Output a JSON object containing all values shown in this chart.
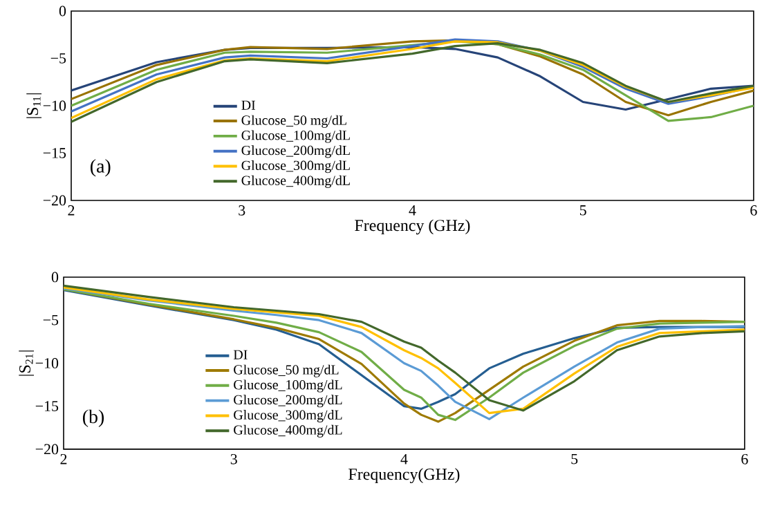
{
  "chart_data": [
    {
      "type": "line",
      "xlabel": "Frequency (GHz)",
      "ylabel": "|S$_{11}$|",
      "annotations": [
        "(a)"
      ],
      "legend": "bottom left",
      "line_style": "solid",
      "marker": "none",
      "grid": false,
      "x": [
        2,
        2.5,
        2.9,
        3.05,
        3.5,
        4,
        4.25,
        4.5,
        4.75,
        5,
        5.25,
        5.5,
        5.75,
        6
      ],
      "xlim": [
        2,
        6
      ],
      "xticks": [
        2,
        3,
        4,
        5,
        6
      ],
      "ylim": [
        -20,
        0
      ],
      "yticks": [
        {
          "value": -20,
          "label": "−20"
        },
        {
          "value": -15,
          "label": "−15"
        },
        {
          "value": -10,
          "label": "−10"
        },
        {
          "value": -5,
          "label": "−5"
        },
        0
      ],
      "series": [
        {
          "name": "DI",
          "color": "#264478",
          "values": [
            -8.4,
            -5.4,
            -4.1,
            -3.9,
            -3.9,
            -3.8,
            -4.0,
            -4.9,
            -6.9,
            -9.6,
            -10.4,
            -9.3,
            -8.2,
            -7.9
          ]
        },
        {
          "name": "Glucose_50 mg/dL",
          "color": "#997300",
          "values": [
            -9.3,
            -5.7,
            -4.1,
            -3.8,
            -4.0,
            -3.2,
            -3.1,
            -3.5,
            -4.8,
            -6.7,
            -9.6,
            -11.0,
            -9.6,
            -8.4
          ]
        },
        {
          "name": "Glucose_100mg/dL",
          "color": "#70ad47",
          "values": [
            -10.0,
            -6.2,
            -4.4,
            -4.3,
            -4.4,
            -3.6,
            -3.2,
            -3.5,
            -4.6,
            -6.2,
            -8.9,
            -11.6,
            -11.2,
            -10.0
          ]
        },
        {
          "name": "Glucose_200mg/dL",
          "color": "#4472c4",
          "values": [
            -10.6,
            -6.7,
            -4.9,
            -4.7,
            -5.0,
            -3.7,
            -3.0,
            -3.2,
            -4.2,
            -5.9,
            -8.2,
            -9.8,
            -9.0,
            -8.0
          ]
        },
        {
          "name": "Glucose_300mg/dL",
          "color": "#ffc000",
          "values": [
            -11.3,
            -7.2,
            -5.2,
            -5.0,
            -5.3,
            -4.0,
            -3.2,
            -3.3,
            -4.2,
            -5.7,
            -8.0,
            -9.6,
            -8.9,
            -8.1
          ]
        },
        {
          "name": "Glucose_400mg/dL",
          "color": "#43682b",
          "values": [
            -11.7,
            -7.5,
            -5.3,
            -5.1,
            -5.5,
            -4.5,
            -3.7,
            -3.4,
            -4.1,
            -5.5,
            -7.9,
            -9.6,
            -8.7,
            -7.9
          ]
        }
      ]
    },
    {
      "type": "line",
      "xlabel": "Frequency(GHz)",
      "ylabel": "|S$_{21}$|",
      "annotations": [
        "(b)"
      ],
      "legend": "bottom left",
      "line_style": "solid",
      "marker": "none",
      "grid": false,
      "x": [
        2,
        2.5,
        3,
        3.25,
        3.5,
        3.75,
        4,
        4.1,
        4.2,
        4.3,
        4.5,
        4.7,
        5,
        5.25,
        5.5,
        5.75,
        6
      ],
      "xlim": [
        2,
        6
      ],
      "xticks": [
        2,
        3,
        4,
        5,
        6
      ],
      "ylim": [
        -20,
        0
      ],
      "yticks": [
        {
          "value": -20,
          "label": "−20"
        },
        {
          "value": -15,
          "label": "−15"
        },
        {
          "value": -10,
          "label": "−10"
        },
        {
          "value": -5,
          "label": "−5"
        },
        0
      ],
      "series": [
        {
          "name": "DI",
          "color": "#255e91",
          "values": [
            -1.5,
            -3.3,
            -5.0,
            -6.1,
            -7.8,
            -11.4,
            -15.0,
            -15.3,
            -14.5,
            -13.6,
            -10.6,
            -8.9,
            -7.1,
            -5.9,
            -5.8,
            -5.8,
            -5.8
          ]
        },
        {
          "name": "Glucose_50 mg/dL",
          "color": "#9e7a00",
          "values": [
            -1.4,
            -3.2,
            -4.9,
            -5.9,
            -7.2,
            -10.1,
            -14.7,
            -16.0,
            -16.8,
            -15.8,
            -13.1,
            -10.4,
            -7.4,
            -5.6,
            -5.1,
            -5.1,
            -5.2
          ]
        },
        {
          "name": "Glucose_100mg/dL",
          "color": "#70ad47",
          "values": [
            -1.4,
            -3.1,
            -4.5,
            -5.3,
            -6.4,
            -8.7,
            -13.1,
            -14.0,
            -16.0,
            -16.6,
            -14.0,
            -11.1,
            -8.0,
            -6.0,
            -5.4,
            -5.3,
            -5.2
          ]
        },
        {
          "name": "Glucose_200mg/dL",
          "color": "#5b9bd5",
          "values": [
            -1.3,
            -2.7,
            -3.9,
            -4.4,
            -5.0,
            -6.5,
            -10.0,
            -10.9,
            -12.6,
            -14.5,
            -16.5,
            -14.0,
            -10.4,
            -7.6,
            -6.0,
            -5.8,
            -5.7
          ]
        },
        {
          "name": "Glucose_300mg/dL",
          "color": "#ffc000",
          "values": [
            -1.2,
            -2.6,
            -3.7,
            -4.1,
            -4.5,
            -5.8,
            -8.5,
            -9.4,
            -10.6,
            -12.3,
            -15.8,
            -15.3,
            -11.2,
            -8.1,
            -6.5,
            -6.3,
            -6.1
          ]
        },
        {
          "name": "Glucose_400mg/dL",
          "color": "#43682b",
          "values": [
            -1.0,
            -2.3,
            -3.5,
            -3.9,
            -4.3,
            -5.2,
            -7.5,
            -8.2,
            -9.7,
            -11.1,
            -14.3,
            -15.5,
            -12.1,
            -8.5,
            -6.9,
            -6.5,
            -6.3
          ]
        }
      ]
    }
  ]
}
